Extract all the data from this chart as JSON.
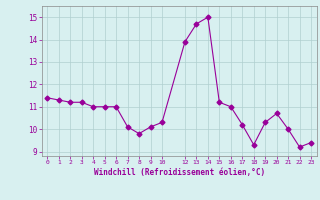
{
  "x": [
    0,
    1,
    2,
    3,
    4,
    5,
    6,
    7,
    8,
    9,
    10,
    12,
    13,
    14,
    15,
    16,
    17,
    18,
    19,
    20,
    21,
    22,
    23
  ],
  "y": [
    11.4,
    11.3,
    11.2,
    11.2,
    11.0,
    11.0,
    11.0,
    10.1,
    9.8,
    10.1,
    10.3,
    13.9,
    14.7,
    15.0,
    11.2,
    11.0,
    10.2,
    9.3,
    10.3,
    10.7,
    10.0,
    9.2,
    9.4
  ],
  "line_color": "#990099",
  "marker": "D",
  "marker_size": 2.5,
  "bg_color": "#d8f0f0",
  "grid_color": "#b0d0d0",
  "xlabel": "Windchill (Refroidissement éolien,°C)",
  "xlabel_color": "#990099",
  "tick_color": "#990099",
  "ylim": [
    8.8,
    15.5
  ],
  "xlim": [
    -0.5,
    23.5
  ],
  "yticks": [
    9,
    10,
    11,
    12,
    13,
    14,
    15
  ],
  "xticks": [
    0,
    1,
    2,
    3,
    4,
    5,
    6,
    7,
    8,
    9,
    10,
    12,
    13,
    14,
    15,
    16,
    17,
    18,
    19,
    20,
    21,
    22,
    23
  ],
  "xtick_labels": [
    "0",
    "1",
    "2",
    "3",
    "4",
    "5",
    "6",
    "7",
    "8",
    "9",
    "10",
    "12",
    "13",
    "14",
    "15",
    "16",
    "17",
    "18",
    "19",
    "20",
    "21",
    "22",
    "23"
  ]
}
